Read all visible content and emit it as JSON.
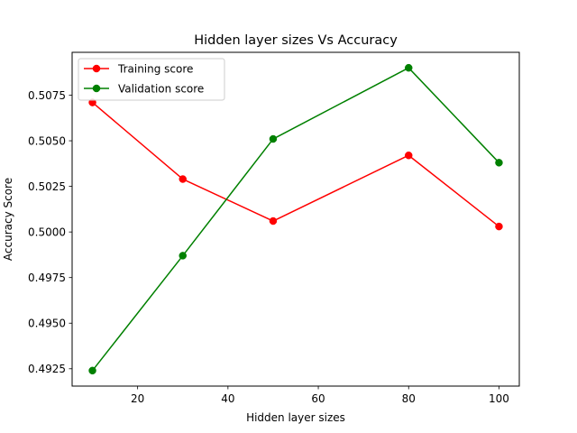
{
  "chart_data": {
    "type": "line",
    "title": "Hidden layer sizes Vs Accuracy",
    "xlabel": "Hidden layer sizes",
    "ylabel": "Accuracy Score",
    "x": [
      10,
      30,
      50,
      80,
      100
    ],
    "series": [
      {
        "name": "Training score",
        "values": [
          0.5071,
          0.5029,
          0.5006,
          0.5042,
          0.5003
        ],
        "color": "#ff0000"
      },
      {
        "name": "Validation score",
        "values": [
          0.4924,
          0.4987,
          0.5051,
          0.509,
          0.5038
        ],
        "color": "#008000"
      }
    ],
    "xlim": [
      5.5,
      104.5
    ],
    "ylim": [
      0.49155,
      0.50985
    ],
    "xticks": [
      20,
      40,
      60,
      80,
      100
    ],
    "yticks": [
      0.4925,
      0.495,
      0.4975,
      0.5,
      0.5025,
      0.505,
      0.5075
    ],
    "ytick_labels": [
      "0.4925",
      "0.4950",
      "0.4975",
      "0.5000",
      "0.5025",
      "0.5050",
      "0.5075"
    ],
    "grid": false,
    "legend_position": "top-left",
    "marker": "circle"
  }
}
